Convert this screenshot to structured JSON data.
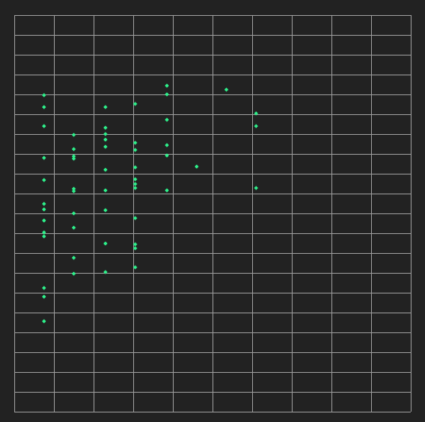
{
  "colors": {
    "background": "#222222",
    "grid": "#9a9a9a",
    "point": "#2df08a"
  },
  "chart_data": {
    "type": "scatter",
    "title": "",
    "xlabel": "",
    "ylabel": "",
    "grid": true,
    "legend": "none",
    "xlim": [
      0,
      10
    ],
    "ylim": [
      0,
      20
    ],
    "x_gridlines": [
      0,
      1,
      2,
      3,
      4,
      5,
      6,
      7,
      8,
      9,
      10
    ],
    "y_gridlines": [
      0,
      1,
      2,
      3,
      4,
      5,
      6,
      7,
      8,
      9,
      10,
      11,
      12,
      13,
      14,
      15,
      16,
      17,
      18,
      19,
      20
    ],
    "series": [
      {
        "points": [
          [
            0.75,
            15.96
          ],
          [
            0.75,
            15.36
          ],
          [
            0.75,
            14.4
          ],
          [
            0.75,
            12.8
          ],
          [
            0.75,
            11.68
          ],
          [
            0.75,
            10.48
          ],
          [
            0.75,
            10.2
          ],
          [
            0.75,
            9.64
          ],
          [
            0.75,
            9.04
          ],
          [
            0.75,
            8.84
          ],
          [
            0.75,
            6.24
          ],
          [
            0.75,
            5.8
          ],
          [
            0.75,
            4.56
          ],
          [
            1.5,
            13.96
          ],
          [
            1.5,
            13.24
          ],
          [
            1.5,
            12.88
          ],
          [
            1.5,
            12.76
          ],
          [
            1.5,
            11.24
          ],
          [
            1.5,
            11.12
          ],
          [
            1.5,
            10.0
          ],
          [
            1.5,
            9.28
          ],
          [
            1.5,
            7.76
          ],
          [
            1.5,
            6.96
          ],
          [
            2.3,
            15.36
          ],
          [
            2.3,
            14.32
          ],
          [
            2.3,
            14.0
          ],
          [
            2.3,
            13.72
          ],
          [
            2.3,
            13.36
          ],
          [
            2.3,
            12.2
          ],
          [
            2.3,
            11.16
          ],
          [
            2.3,
            10.16
          ],
          [
            2.3,
            8.48
          ],
          [
            2.3,
            7.04
          ],
          [
            3.05,
            15.52
          ],
          [
            3.05,
            13.56
          ],
          [
            3.05,
            13.2
          ],
          [
            3.05,
            12.32
          ],
          [
            3.05,
            11.72
          ],
          [
            3.05,
            11.48
          ],
          [
            3.05,
            11.28
          ],
          [
            3.05,
            9.76
          ],
          [
            3.05,
            8.44
          ],
          [
            3.05,
            8.24
          ],
          [
            3.05,
            7.28
          ],
          [
            3.85,
            16.44
          ],
          [
            3.85,
            16.0
          ],
          [
            3.85,
            14.72
          ],
          [
            3.85,
            13.44
          ],
          [
            3.85,
            12.92
          ],
          [
            3.85,
            11.16
          ],
          [
            4.6,
            12.36
          ],
          [
            5.35,
            16.24
          ],
          [
            6.1,
            15.04
          ],
          [
            6.1,
            14.4
          ],
          [
            6.1,
            11.28
          ]
        ]
      }
    ]
  }
}
